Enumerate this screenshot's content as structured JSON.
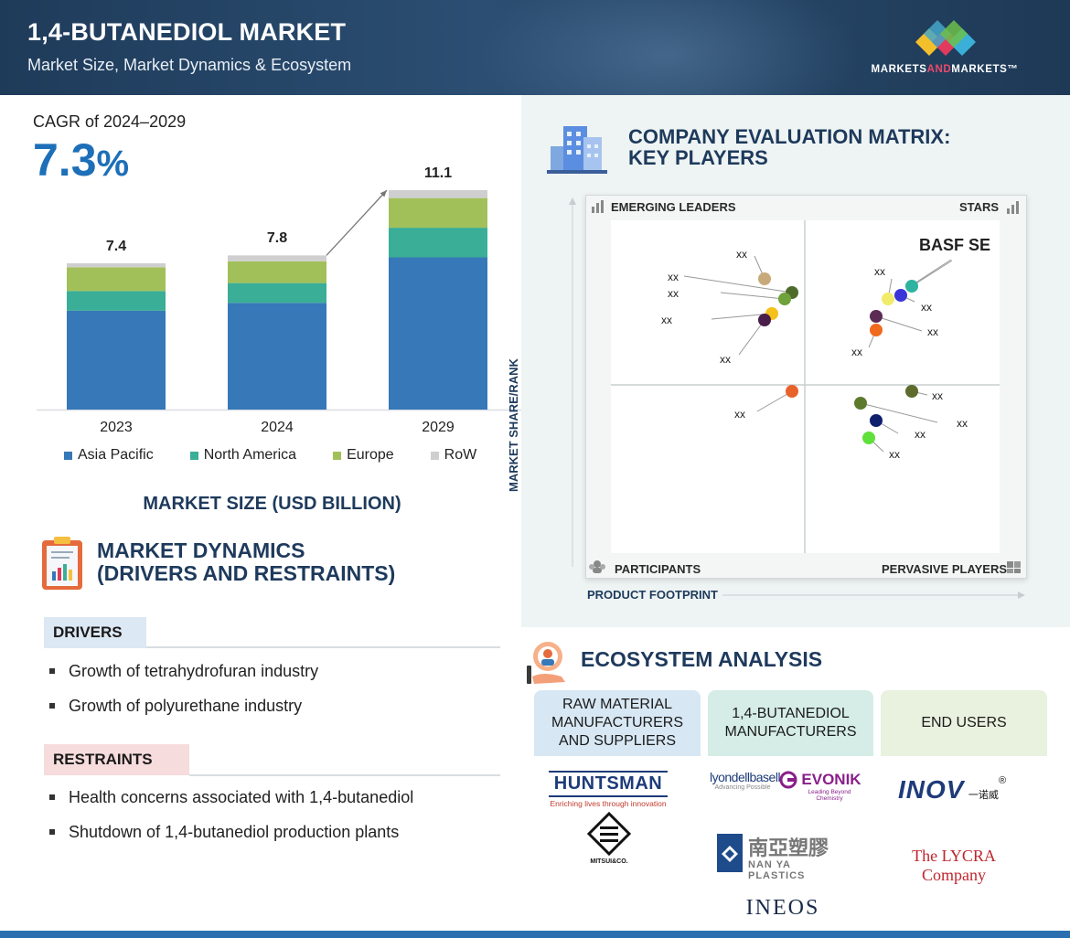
{
  "header": {
    "title": "1,4-BUTANEDIOL MARKET",
    "subtitle": "Market Size, Market Dynamics & Ecosystem",
    "brand_part1": "MARKETS",
    "brand_part2": "AND",
    "brand_part3": "MARKETS™"
  },
  "cagr": {
    "label": "CAGR of 2024–2029",
    "value": "7.3",
    "unit": "%"
  },
  "chart_data": {
    "type": "bar",
    "stacked": true,
    "categories": [
      "2023",
      "2024",
      "2029"
    ],
    "totals": [
      "7.4",
      "7.8",
      "11.1"
    ],
    "series": [
      {
        "name": "Asia Pacific",
        "color": "#3678b8",
        "values": [
          5.0,
          5.4,
          7.7
        ]
      },
      {
        "name": "North America",
        "color": "#3aae96",
        "values": [
          1.0,
          1.0,
          1.5
        ]
      },
      {
        "name": "Europe",
        "color": "#a2c05a",
        "values": [
          1.2,
          1.1,
          1.5
        ]
      },
      {
        "name": "RoW",
        "color": "#cfcfcf",
        "values": [
          0.2,
          0.3,
          0.4
        ]
      }
    ],
    "title": "MARKET SIZE (USD BILLION)",
    "ylim": [
      0,
      11.1
    ]
  },
  "dynamics": {
    "title_line1": "MARKET DYNAMICS",
    "title_line2": "(DRIVERS AND RESTRAINTS)",
    "drivers_label": "DRIVERS",
    "drivers": [
      "Growth of tetrahydrofuran industry",
      "Growth of polyurethane industry"
    ],
    "restraints_label": "RESTRAINTS",
    "restraints": [
      "Health concerns associated with 1,4-butanediol",
      "Shutdown of 1,4-butanediol production plants"
    ]
  },
  "matrix": {
    "title_line1": "COMPANY EVALUATION MATRIX:",
    "title_line2": "KEY PLAYERS",
    "quadrants": {
      "top_left": "EMERGING LEADERS",
      "top_right": "STARS",
      "bottom_left": "PARTICIPANTS",
      "bottom_right": "PERVASIVE PLAYERS"
    },
    "y_axis": "MARKET SHARE/RANK",
    "x_axis": "PRODUCT FOOTPRINT",
    "highlight": "BASF SE",
    "placeholder": "xx",
    "dot_colors": [
      "#c8aa7a",
      "#4e6b2c",
      "#6fa23b",
      "#f5c21b",
      "#4a1e4a",
      "#2db3a0",
      "#3a35d8",
      "#f0ec6a",
      "#5b2b55",
      "#f06a1e",
      "#e8632b",
      "#5d6b2c",
      "#5d7a2c",
      "#0f1f6e",
      "#5fe03a"
    ]
  },
  "ecosystem": {
    "title": "ECOSYSTEM ANALYSIS",
    "col1": "RAW MATERIAL MANUFACTURERS AND SUPPLIERS",
    "col2": "1,4-BUTANEDIOL MANUFACTURERS",
    "col3": "END USERS",
    "huntsman": "HUNTSMAN",
    "huntsman_tag": "Enriching lives through innovation",
    "mitsui": "MITSUI&CO.",
    "lyondell": "lyondellbasell",
    "lyondell_tag": "Advancing Possible",
    "evonik": "EVONIK",
    "evonik_tag": "Leading Beyond Chemistry",
    "nanya_cn": "南亞塑膠",
    "nanya_en": "NAN YA PLASTICS",
    "ineos": "INEOS",
    "inov": "INOV",
    "inov_cn": "一诺威",
    "lycra": "The LYCRA Company"
  }
}
